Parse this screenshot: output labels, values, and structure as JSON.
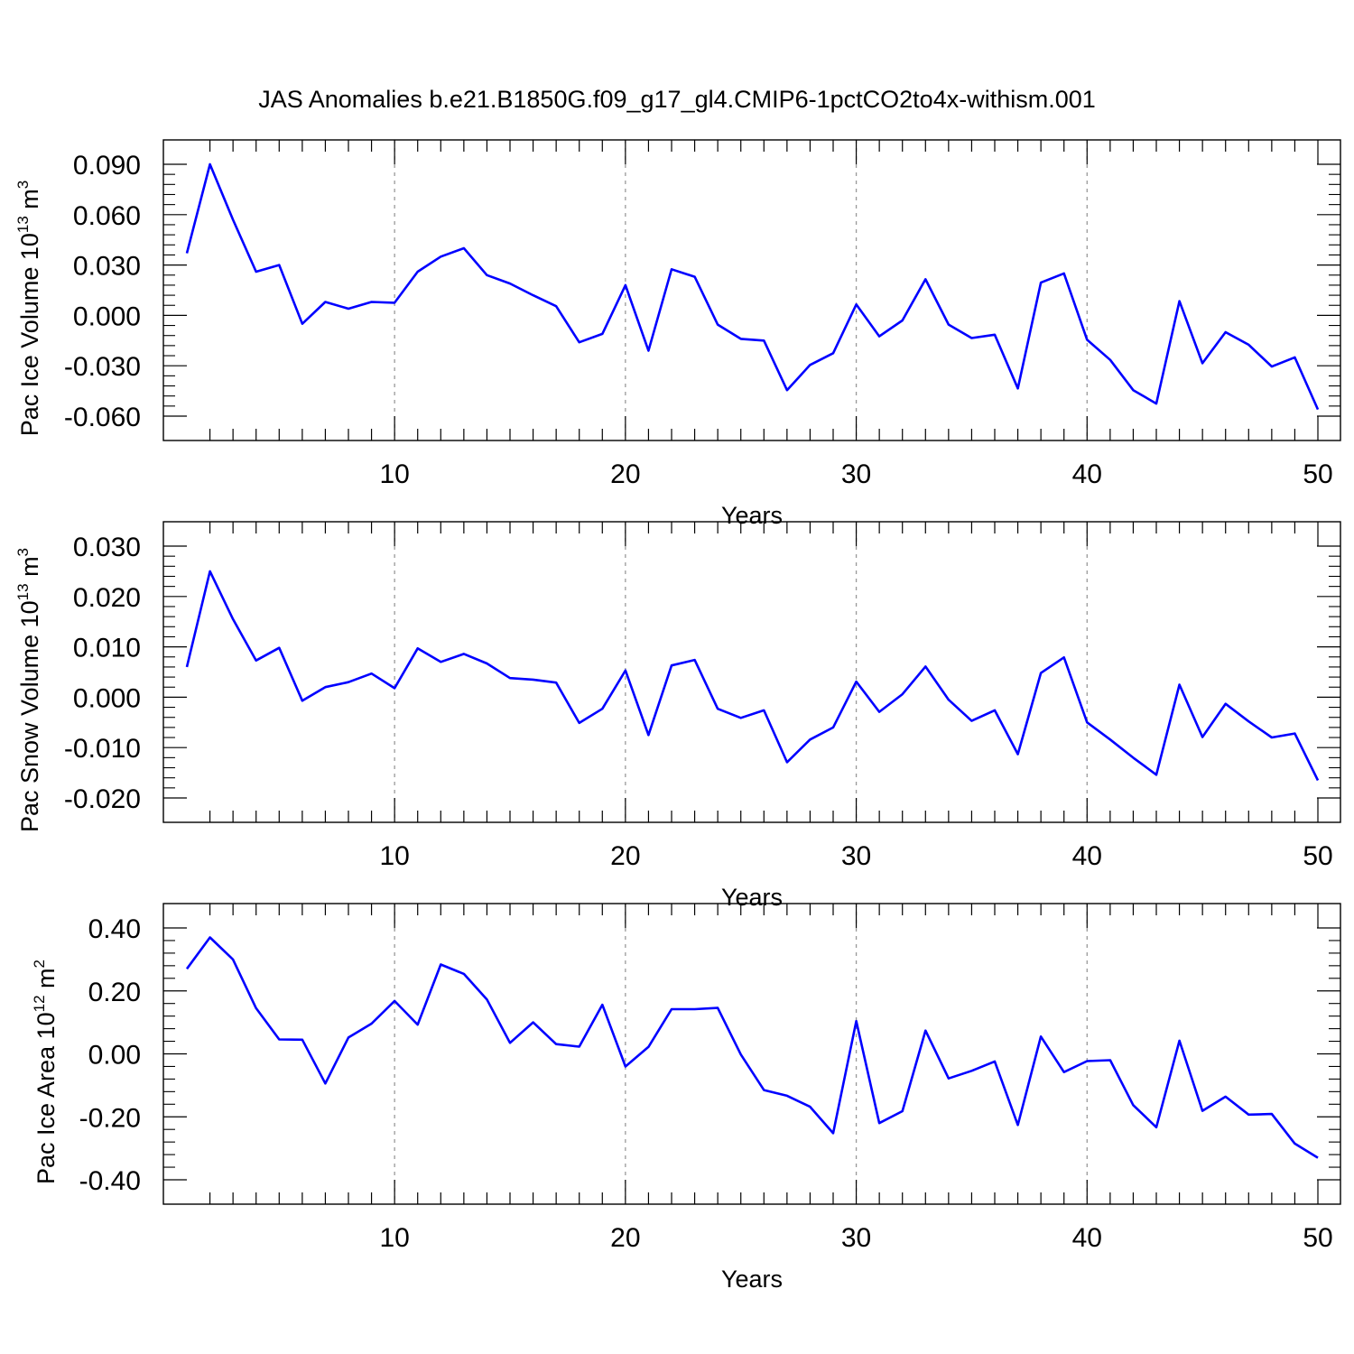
{
  "figure_title": "JAS Anomalies b.e21.B1850G.f09_g17_gl4.CMIP6-1pctCO2to4x-withism.001",
  "colors": {
    "line": "#0000ff",
    "axes": "#000000",
    "grid": "#999999",
    "background": "#ffffff"
  },
  "chart_data": [
    {
      "type": "line",
      "ylabel": {
        "text": "Pac Ice Volume 10",
        "exponent": "13",
        "unit": " m",
        "unit_exponent": "3"
      },
      "xlabel": "Years",
      "xlim": [
        1,
        50
      ],
      "ylim": [
        -0.06,
        0.09
      ],
      "xticks": [
        10,
        20,
        30,
        40,
        50
      ],
      "xtick_labels": [
        "10",
        "20",
        "30",
        "40",
        "50"
      ],
      "yticks": [
        -0.06,
        -0.03,
        0.0,
        0.03,
        0.06,
        0.09
      ],
      "ytick_labels": [
        "-0.060",
        "-0.030",
        "0.000",
        "0.030",
        "0.060",
        "0.090"
      ],
      "grid": "vertical dashed at major x ticks",
      "series": [
        {
          "color": "#0000ff",
          "x": [
            1,
            2,
            3,
            4,
            5,
            6,
            7,
            8,
            9,
            10,
            11,
            12,
            13,
            14,
            15,
            16,
            17,
            18,
            19,
            20,
            21,
            22,
            23,
            24,
            25,
            26,
            27,
            28,
            29,
            30,
            31,
            32,
            33,
            34,
            35,
            36,
            37,
            38,
            39,
            40,
            41,
            42,
            43,
            44,
            45,
            46,
            47,
            48,
            49,
            50
          ],
          "y": [
            0.037,
            0.09,
            0.057,
            0.026,
            0.03,
            -0.005,
            0.008,
            0.004,
            0.008,
            0.0075,
            0.026,
            0.035,
            0.04,
            0.024,
            0.019,
            0.012,
            0.0055,
            -0.016,
            -0.011,
            0.018,
            -0.021,
            0.0275,
            0.023,
            -0.0055,
            -0.014,
            -0.015,
            -0.0445,
            -0.0295,
            -0.0225,
            0.0065,
            -0.0125,
            -0.003,
            0.0215,
            -0.0055,
            -0.0135,
            -0.0115,
            -0.0435,
            0.0195,
            0.025,
            -0.0145,
            -0.0265,
            -0.0445,
            -0.0525,
            0.0085,
            -0.0285,
            -0.01,
            -0.0175,
            -0.0305,
            -0.025,
            -0.056
          ]
        }
      ]
    },
    {
      "type": "line",
      "ylabel": {
        "text": "Pac Snow Volume 10",
        "exponent": "13",
        "unit": " m",
        "unit_exponent": "3"
      },
      "xlabel": "Years",
      "xlim": [
        1,
        50
      ],
      "ylim": [
        -0.02,
        0.03
      ],
      "xticks": [
        10,
        20,
        30,
        40,
        50
      ],
      "xtick_labels": [
        "10",
        "20",
        "30",
        "40",
        "50"
      ],
      "yticks": [
        -0.02,
        -0.01,
        0.0,
        0.01,
        0.02,
        0.03
      ],
      "ytick_labels": [
        "-0.020",
        "-0.010",
        "0.000",
        "0.010",
        "0.020",
        "0.030"
      ],
      "grid": "vertical dashed at major x ticks",
      "series": [
        {
          "color": "#0000ff",
          "x": [
            1,
            2,
            3,
            4,
            5,
            6,
            7,
            8,
            9,
            10,
            11,
            12,
            13,
            14,
            15,
            16,
            17,
            18,
            19,
            20,
            21,
            22,
            23,
            24,
            25,
            26,
            27,
            28,
            29,
            30,
            31,
            32,
            33,
            34,
            35,
            36,
            37,
            38,
            39,
            40,
            41,
            42,
            43,
            44,
            45,
            46,
            47,
            48,
            49,
            50
          ],
          "y": [
            0.006,
            0.025,
            0.0155,
            0.0073,
            0.0098,
            -0.0007,
            0.002,
            0.003,
            0.0047,
            0.0018,
            0.0097,
            0.007,
            0.0086,
            0.0067,
            0.0038,
            0.0035,
            0.0029,
            -0.0051,
            -0.0023,
            0.0053,
            -0.0075,
            0.0063,
            0.0074,
            -0.0023,
            -0.0041,
            -0.0026,
            -0.0129,
            -0.0084,
            -0.006,
            0.0031,
            -0.0029,
            0.0006,
            0.0061,
            -0.0005,
            -0.0047,
            -0.0026,
            -0.0113,
            0.0048,
            0.0079,
            -0.005,
            -0.0084,
            -0.012,
            -0.0154,
            0.0025,
            -0.0079,
            -0.0013,
            -0.0048,
            -0.008,
            -0.0072,
            -0.0165
          ]
        }
      ]
    },
    {
      "type": "line",
      "ylabel": {
        "text": "Pac Ice Area 10",
        "exponent": "12",
        "unit": " m",
        "unit_exponent": "2"
      },
      "xlabel": "Years",
      "xlim": [
        1,
        50
      ],
      "ylim": [
        -0.4,
        0.4
      ],
      "xticks": [
        10,
        20,
        30,
        40,
        50
      ],
      "xtick_labels": [
        "10",
        "20",
        "30",
        "40",
        "50"
      ],
      "yticks": [
        -0.4,
        -0.2,
        0.0,
        0.2,
        0.4
      ],
      "ytick_labels": [
        "-0.40",
        "-0.20",
        "0.00",
        "0.20",
        "0.40"
      ],
      "grid": "vertical dashed at major x ticks",
      "series": [
        {
          "color": "#0000ff",
          "x": [
            1,
            2,
            3,
            4,
            5,
            6,
            7,
            8,
            9,
            10,
            11,
            12,
            13,
            14,
            15,
            16,
            17,
            18,
            19,
            20,
            21,
            22,
            23,
            24,
            25,
            26,
            27,
            28,
            29,
            30,
            31,
            32,
            33,
            34,
            35,
            36,
            37,
            38,
            39,
            40,
            41,
            42,
            43,
            44,
            45,
            46,
            47,
            48,
            49,
            50
          ],
          "y": [
            0.27,
            0.37,
            0.3,
            0.145,
            0.046,
            0.045,
            -0.094,
            0.052,
            0.096,
            0.168,
            0.093,
            0.284,
            0.254,
            0.173,
            0.035,
            0.1,
            0.031,
            0.023,
            0.156,
            -0.04,
            0.022,
            0.142,
            0.142,
            0.146,
            -0.002,
            -0.115,
            -0.133,
            -0.168,
            -0.252,
            0.104,
            -0.22,
            -0.182,
            0.074,
            -0.078,
            -0.054,
            -0.024,
            -0.226,
            0.055,
            -0.058,
            -0.023,
            -0.02,
            -0.163,
            -0.233,
            0.042,
            -0.181,
            -0.136,
            -0.193,
            -0.191,
            -0.285,
            -0.33
          ]
        }
      ]
    }
  ]
}
